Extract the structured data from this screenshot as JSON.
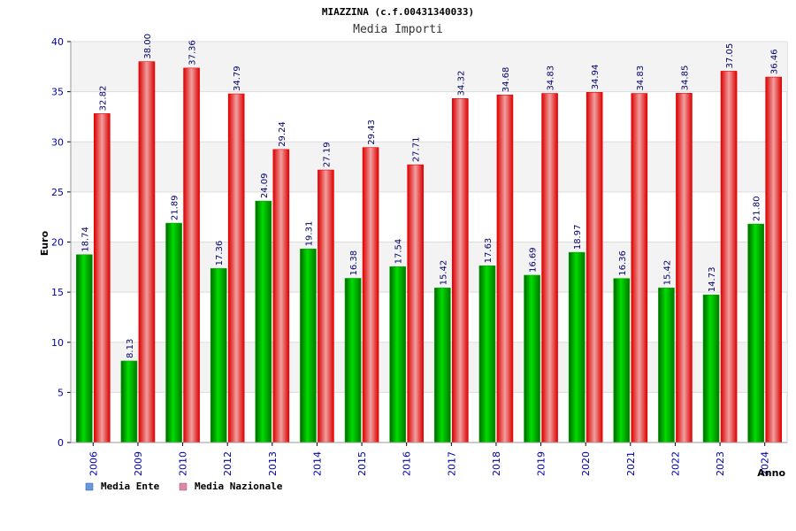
{
  "chart_data": {
    "type": "bar",
    "title": "MIAZZINA (c.f.00431340033)",
    "subtitle": "Media Importi",
    "ylabel": "Euro",
    "xlabel": "Anno",
    "ylim": [
      0,
      40
    ],
    "yticks": [
      0,
      5,
      10,
      15,
      20,
      25,
      30,
      35,
      40
    ],
    "grid": true,
    "legend_position": "bottom-left",
    "categories": [
      "2006",
      "2009",
      "2010",
      "2012",
      "2013",
      "2014",
      "2015",
      "2016",
      "2017",
      "2018",
      "2019",
      "2020",
      "2021",
      "2022",
      "2023",
      "2024"
    ],
    "series": [
      {
        "name": "Media Ente",
        "color": "#00aa00",
        "legend_color": "#6699dd",
        "values": [
          18.74,
          8.13,
          21.89,
          17.36,
          24.09,
          19.31,
          16.38,
          17.54,
          15.42,
          17.63,
          16.69,
          18.97,
          16.36,
          15.42,
          14.73,
          21.8
        ],
        "labels": [
          "18.74",
          "8.13",
          "21.89",
          "17.36",
          "24.09",
          "19.31",
          "16.38",
          "17.54",
          "15.42",
          "17.63",
          "16.69",
          "18.97",
          "16.36",
          "15.42",
          "14.73",
          "21.80"
        ]
      },
      {
        "name": "Media Nazionale",
        "color": "#ee0000",
        "legend_color": "#dd88aa",
        "values": [
          32.82,
          38.0,
          37.36,
          34.79,
          29.24,
          27.19,
          29.43,
          27.71,
          34.32,
          34.68,
          34.83,
          34.94,
          34.83,
          34.85,
          37.05,
          36.46
        ],
        "labels": [
          "32.82",
          "38.00",
          "37.36",
          "34.79",
          "29.24",
          "27.19",
          "29.43",
          "27.71",
          "34.32",
          "34.68",
          "34.83",
          "34.94",
          "34.83",
          "34.85",
          "37.05",
          "36.46"
        ]
      }
    ]
  }
}
